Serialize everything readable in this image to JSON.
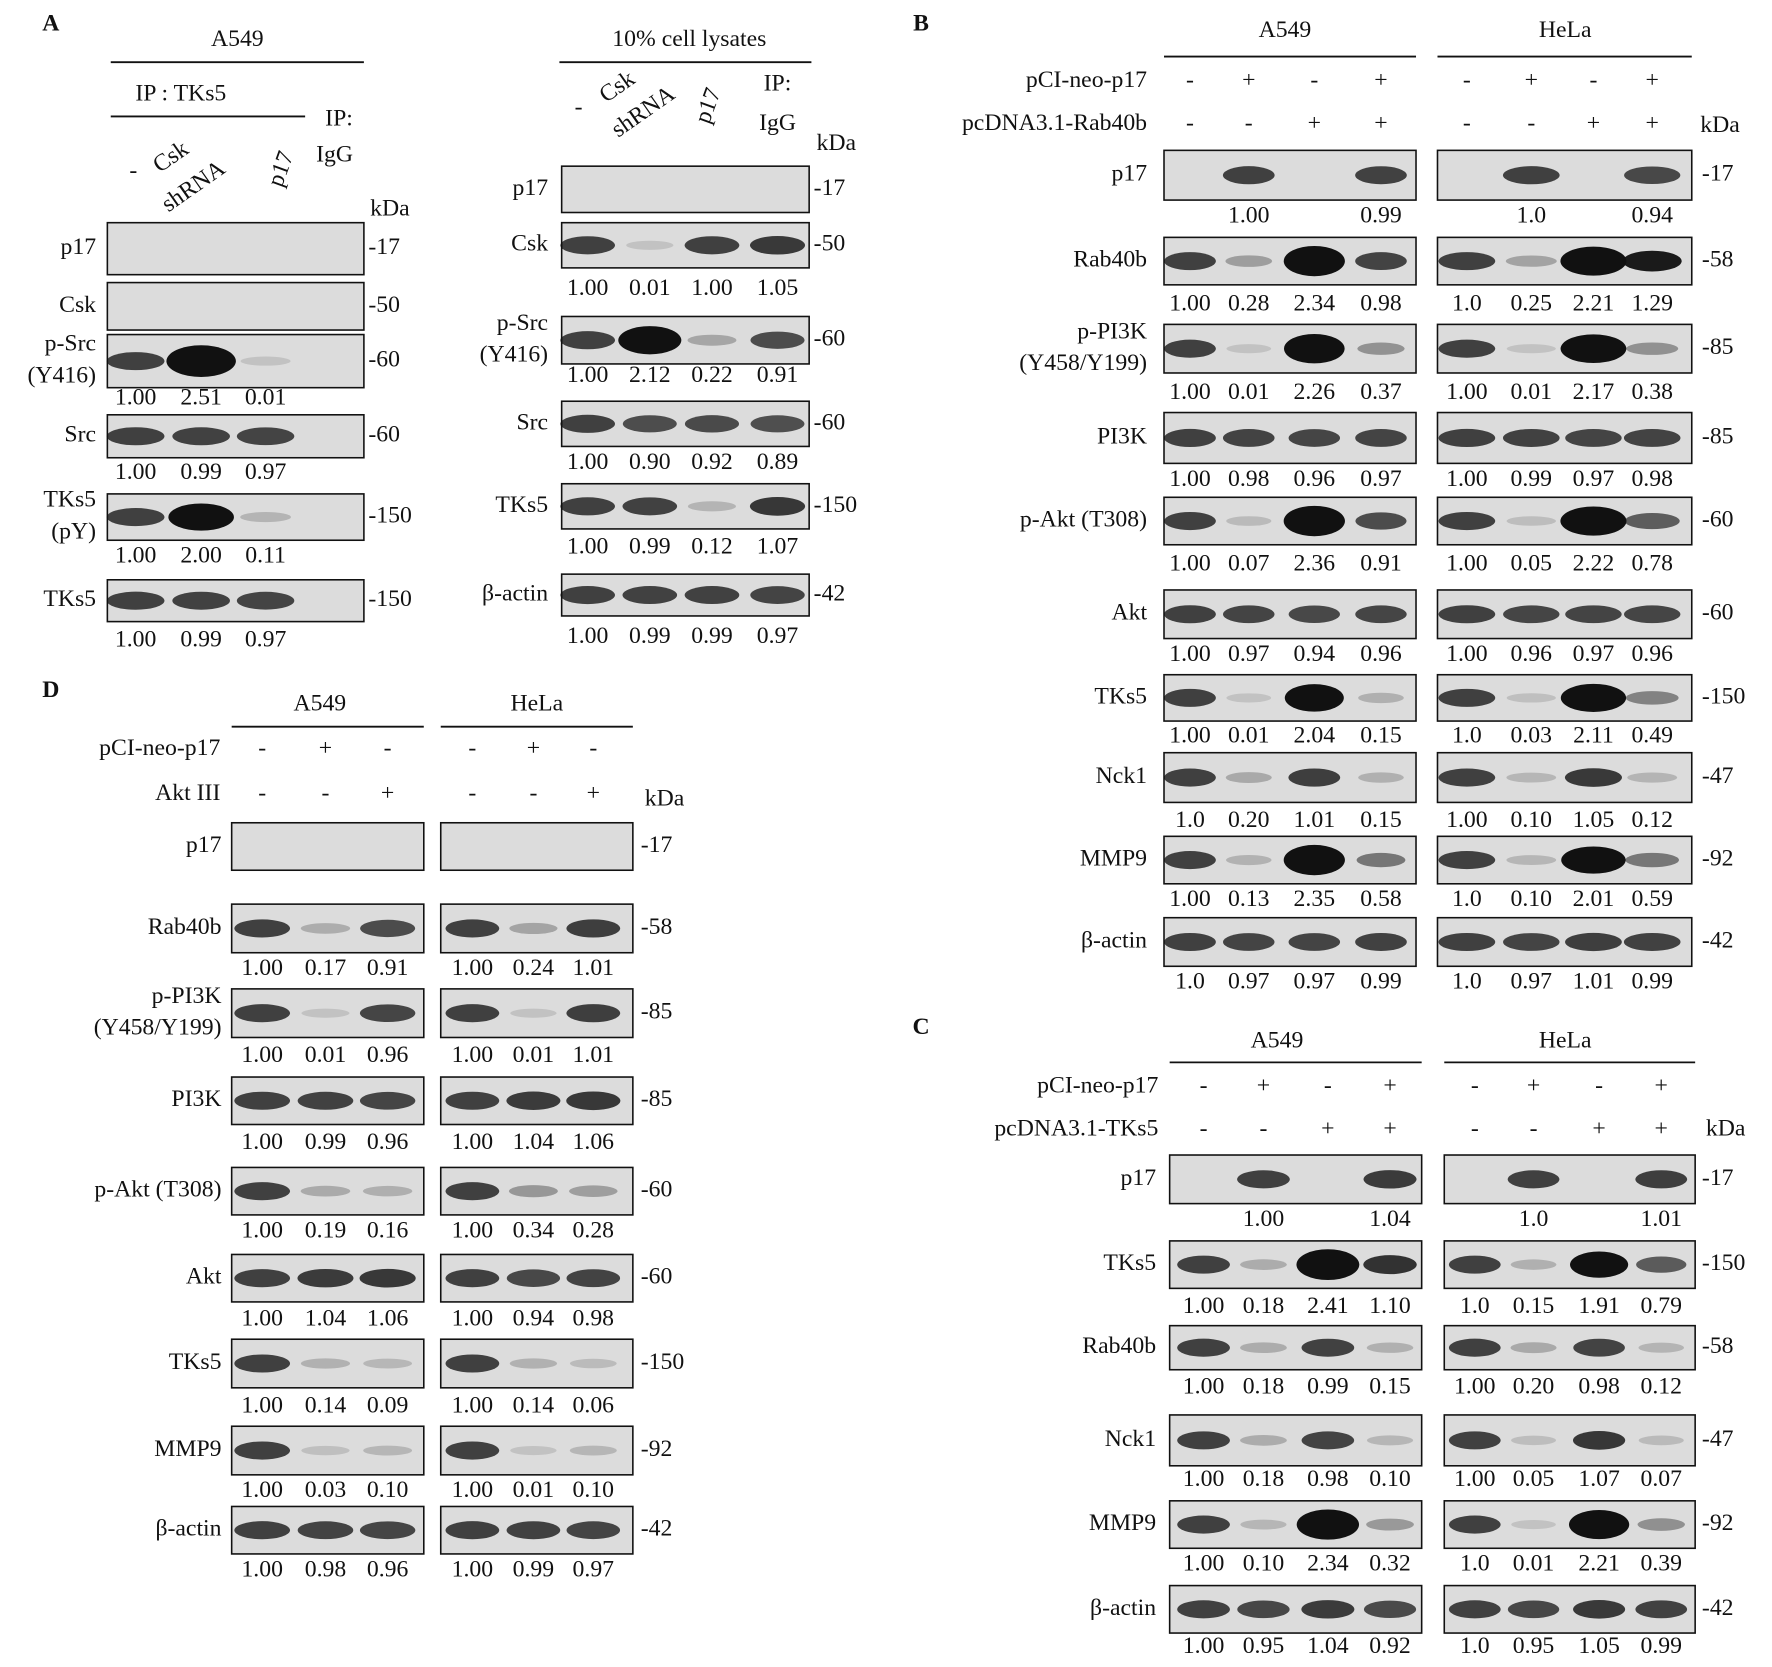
{
  "panels": [
    {
      "label": "A",
      "groups": [
        {
          "header": "A549",
          "subheader": "IP : TKs5",
          "lanes": [
            [
              "-"
            ],
            [
              "Csk",
              "shRNA"
            ],
            [
              "p17"
            ],
            [
              "IP:",
              "IgG"
            ]
          ],
          "kda_header": "kDa",
          "blots": [
            {
              "name": [
                "p17"
              ],
              "kda": "-17"
            },
            {
              "name": [
                "Csk"
              ],
              "kda": "-50"
            },
            {
              "name": [
                "p-Src",
                "(Y416)"
              ],
              "kda": "-60",
              "quant": [
                "1.00",
                "2.51",
                "0.01"
              ]
            },
            {
              "name": [
                "Src"
              ],
              "kda": "-60",
              "quant": [
                "1.00",
                "0.99",
                "0.97"
              ]
            },
            {
              "name": [
                "TKs5",
                "(pY)"
              ],
              "kda": "-150",
              "quant": [
                "1.00",
                "2.00",
                "0.11"
              ]
            },
            {
              "name": [
                "TKs5"
              ],
              "kda": "-150",
              "quant": [
                "1.00",
                "0.99",
                "0.97"
              ]
            }
          ]
        },
        {
          "header": "10% cell lysates",
          "lanes": [
            [
              "-"
            ],
            [
              "Csk",
              "shRNA"
            ],
            [
              "p17"
            ],
            [
              "IP:",
              "IgG"
            ]
          ],
          "kda_header": "kDa",
          "blots": [
            {
              "name": [
                "p17"
              ],
              "kda": "-17"
            },
            {
              "name": [
                "Csk"
              ],
              "kda": "-50",
              "quant": [
                "1.00",
                "0.01",
                "1.00",
                "1.05"
              ]
            },
            {
              "name": [
                "p-Src",
                "(Y416)"
              ],
              "kda": "-60",
              "quant": [
                "1.00",
                "2.12",
                "0.22",
                "0.91"
              ]
            },
            {
              "name": [
                "Src"
              ],
              "kda": "-60",
              "quant": [
                "1.00",
                "0.90",
                "0.92",
                "0.89"
              ]
            },
            {
              "name": [
                "TKs5"
              ],
              "kda": "-150",
              "quant": [
                "1.00",
                "0.99",
                "0.12",
                "1.07"
              ]
            },
            {
              "name": [
                "β-actin"
              ],
              "kda": "-42",
              "quant": [
                "1.00",
                "0.99",
                "0.99",
                "0.97"
              ]
            }
          ]
        }
      ]
    },
    {
      "label": "B",
      "cell_lines": [
        "A549",
        "HeLa"
      ],
      "conditions": [
        {
          "name": "pCI-neo-p17",
          "signs": [
            [
              "-",
              "+",
              "-",
              "+"
            ],
            [
              "-",
              "+",
              "-",
              "+"
            ]
          ]
        },
        {
          "name": "pcDNA3.1-Rab40b",
          "signs": [
            [
              "-",
              "-",
              "+",
              "+"
            ],
            [
              "-",
              "-",
              "+",
              "+"
            ]
          ]
        }
      ],
      "kda_header": "kDa",
      "blots": [
        {
          "name": [
            "p17"
          ],
          "kda": "-17",
          "quant": [
            [
              null,
              "1.00",
              null,
              "0.99"
            ],
            [
              null,
              "1.0",
              null,
              "0.94"
            ]
          ]
        },
        {
          "name": [
            "Rab40b"
          ],
          "kda": "-58",
          "quant": [
            [
              "1.00",
              "0.28",
              "2.34",
              "0.98"
            ],
            [
              "1.0",
              "0.25",
              "2.21",
              "1.29"
            ]
          ]
        },
        {
          "name": [
            "p-PI3K",
            "(Y458/Y199)"
          ],
          "kda": "-85",
          "quant": [
            [
              "1.00",
              "0.01",
              "2.26",
              "0.37"
            ],
            [
              "1.00",
              "0.01",
              "2.17",
              "0.38"
            ]
          ]
        },
        {
          "name": [
            "PI3K"
          ],
          "kda": "-85",
          "quant": [
            [
              "1.00",
              "0.98",
              "0.96",
              "0.97"
            ],
            [
              "1.00",
              "0.99",
              "0.97",
              "0.98"
            ]
          ]
        },
        {
          "name": [
            "p-Akt (T308)"
          ],
          "kda": "-60",
          "quant": [
            [
              "1.00",
              "0.07",
              "2.36",
              "0.91"
            ],
            [
              "1.00",
              "0.05",
              "2.22",
              "0.78"
            ]
          ]
        },
        {
          "name": [
            "Akt"
          ],
          "kda": "-60",
          "quant": [
            [
              "1.00",
              "0.97",
              "0.94",
              "0.96"
            ],
            [
              "1.00",
              "0.96",
              "0.97",
              "0.96"
            ]
          ]
        },
        {
          "name": [
            "TKs5"
          ],
          "kda": "-150",
          "quant": [
            [
              "1.00",
              "0.01",
              "2.04",
              "0.15"
            ],
            [
              "1.0",
              "0.03",
              "2.11",
              "0.49"
            ]
          ]
        },
        {
          "name": [
            "Nck1"
          ],
          "kda": "-47",
          "quant": [
            [
              "1.0",
              "0.20",
              "1.01",
              "0.15"
            ],
            [
              "1.00",
              "0.10",
              "1.05",
              "0.12"
            ]
          ]
        },
        {
          "name": [
            "MMP9"
          ],
          "kda": "-92",
          "quant": [
            [
              "1.00",
              "0.13",
              "2.35",
              "0.58"
            ],
            [
              "1.0",
              "0.10",
              "2.01",
              "0.59"
            ]
          ]
        },
        {
          "name": [
            "β-actin"
          ],
          "kda": "-42",
          "quant": [
            [
              "1.0",
              "0.97",
              "0.97",
              "0.99"
            ],
            [
              "1.0",
              "0.97",
              "1.01",
              "0.99"
            ]
          ]
        }
      ]
    },
    {
      "label": "C",
      "cell_lines": [
        "A549",
        "HeLa"
      ],
      "conditions": [
        {
          "name": "pCI-neo-p17",
          "signs": [
            [
              "-",
              "+",
              "-",
              "+"
            ],
            [
              "-",
              "+",
              "-",
              "+"
            ]
          ]
        },
        {
          "name": "pcDNA3.1-TKs5",
          "signs": [
            [
              "-",
              "-",
              "+",
              "+"
            ],
            [
              "-",
              "-",
              "+",
              "+"
            ]
          ]
        }
      ],
      "kda_header": "kDa",
      "blots": [
        {
          "name": [
            "p17"
          ],
          "kda": "-17",
          "quant": [
            [
              null,
              "1.00",
              null,
              "1.04"
            ],
            [
              null,
              "1.0",
              null,
              "1.01"
            ]
          ]
        },
        {
          "name": [
            "TKs5"
          ],
          "kda": "-150",
          "quant": [
            [
              "1.00",
              "0.18",
              "2.41",
              "1.10"
            ],
            [
              "1.0",
              "0.15",
              "1.91",
              "0.79"
            ]
          ]
        },
        {
          "name": [
            "Rab40b"
          ],
          "kda": "-58",
          "quant": [
            [
              "1.00",
              "0.18",
              "0.99",
              "0.15"
            ],
            [
              "1.00",
              "0.20",
              "0.98",
              "0.12"
            ]
          ]
        },
        {
          "name": [
            "Nck1"
          ],
          "kda": "-47",
          "quant": [
            [
              "1.00",
              "0.18",
              "0.98",
              "0.10"
            ],
            [
              "1.00",
              "0.05",
              "1.07",
              "0.07"
            ]
          ]
        },
        {
          "name": [
            "MMP9"
          ],
          "kda": "-92",
          "quant": [
            [
              "1.00",
              "0.10",
              "2.34",
              "0.32"
            ],
            [
              "1.0",
              "0.01",
              "2.21",
              "0.39"
            ]
          ]
        },
        {
          "name": [
            "β-actin"
          ],
          "kda": "-42",
          "quant": [
            [
              "1.00",
              "0.95",
              "1.04",
              "0.92"
            ],
            [
              "1.0",
              "0.95",
              "1.05",
              "0.99"
            ]
          ]
        }
      ]
    },
    {
      "label": "D",
      "cell_lines": [
        "A549",
        "HeLa"
      ],
      "conditions": [
        {
          "name": "pCI-neo-p17",
          "signs": [
            [
              "-",
              "+",
              "-"
            ],
            [
              "-",
              "+",
              "-"
            ]
          ]
        },
        {
          "name": "Akt III",
          "signs": [
            [
              "-",
              "-",
              "+"
            ],
            [
              "-",
              "-",
              "+"
            ]
          ]
        }
      ],
      "kda_header": "kDa",
      "blots": [
        {
          "name": [
            "p17"
          ],
          "kda": "-17"
        },
        {
          "name": [
            "Rab40b"
          ],
          "kda": "-58",
          "quant": [
            [
              "1.00",
              "0.17",
              "0.91"
            ],
            [
              "1.00",
              "0.24",
              "1.01"
            ]
          ]
        },
        {
          "name": [
            "p-PI3K",
            "(Y458/Y199)"
          ],
          "kda": "-85",
          "quant": [
            [
              "1.00",
              "0.01",
              "0.96"
            ],
            [
              "1.00",
              "0.01",
              "1.01"
            ]
          ]
        },
        {
          "name": [
            "PI3K"
          ],
          "kda": "-85",
          "quant": [
            [
              "1.00",
              "0.99",
              "0.96"
            ],
            [
              "1.00",
              "1.04",
              "1.06"
            ]
          ]
        },
        {
          "name": [
            "p-Akt (T308)"
          ],
          "kda": "-60",
          "quant": [
            [
              "1.00",
              "0.19",
              "0.16"
            ],
            [
              "1.00",
              "0.34",
              "0.28"
            ]
          ]
        },
        {
          "name": [
            "Akt"
          ],
          "kda": "-60",
          "quant": [
            [
              "1.00",
              "1.04",
              "1.06"
            ],
            [
              "1.00",
              "0.94",
              "0.98"
            ]
          ]
        },
        {
          "name": [
            "TKs5"
          ],
          "kda": "-150",
          "quant": [
            [
              "1.00",
              "0.14",
              "0.09"
            ],
            [
              "1.00",
              "0.14",
              "0.06"
            ]
          ]
        },
        {
          "name": [
            "MMP9"
          ],
          "kda": "-92",
          "quant": [
            [
              "1.00",
              "0.03",
              "0.10"
            ],
            [
              "1.00",
              "0.01",
              "0.10"
            ]
          ]
        },
        {
          "name": [
            "β-actin"
          ],
          "kda": "-42",
          "quant": [
            [
              "1.00",
              "0.98",
              "0.96"
            ],
            [
              "1.00",
              "0.99",
              "0.97"
            ]
          ]
        }
      ]
    }
  ]
}
